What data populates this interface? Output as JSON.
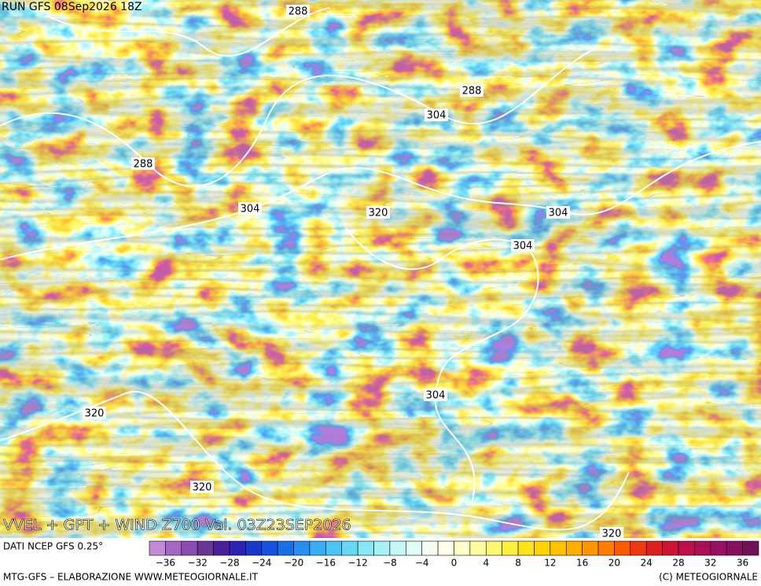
{
  "header": {
    "run": "RUN GFS 08Sep2026 18Z"
  },
  "map": {
    "contour_labels": [
      "288",
      "288",
      "304",
      "288",
      "304",
      "320",
      "304",
      "304",
      "304",
      "320",
      "320",
      "320"
    ],
    "title": "VVEL + GPT + WIND Z700 Val. 03Z23SEP2026"
  },
  "source": "DATI NCEP GFS 0.25°",
  "colorbar": {
    "colors": [
      "#c58ad6",
      "#a866c4",
      "#8c4cb4",
      "#6a3498",
      "#4b1f9a",
      "#2a22b0",
      "#1838c8",
      "#1452dc",
      "#1a6ee8",
      "#2690f2",
      "#38aef6",
      "#4cc6f6",
      "#66daf4",
      "#86e8f4",
      "#a6f2f4",
      "#c6f8f6",
      "#e2fcf6",
      "#f4fef4",
      "#ffffea",
      "#ffffc8",
      "#fffca0",
      "#fff870",
      "#fff040",
      "#ffe41c",
      "#ffd400",
      "#ffc200",
      "#ffae00",
      "#ff9800",
      "#ff7e00",
      "#fa5c00",
      "#ee3a10",
      "#dc2020",
      "#cc1436",
      "#bc1048",
      "#aa1058",
      "#981062",
      "#861060",
      "#74105a"
    ],
    "ticks": [
      "−36",
      "−32",
      "−28",
      "−24",
      "−20",
      "−16",
      "−12",
      "−8",
      "−4",
      "0",
      "4",
      "8",
      "12",
      "16",
      "20",
      "24",
      "28",
      "32",
      "36"
    ]
  },
  "footer": {
    "left": "MTG-GFS – ELABORAZIONE WWW.METEOGIORNALE.IT",
    "right": "(C) METEOGIORNALE"
  }
}
